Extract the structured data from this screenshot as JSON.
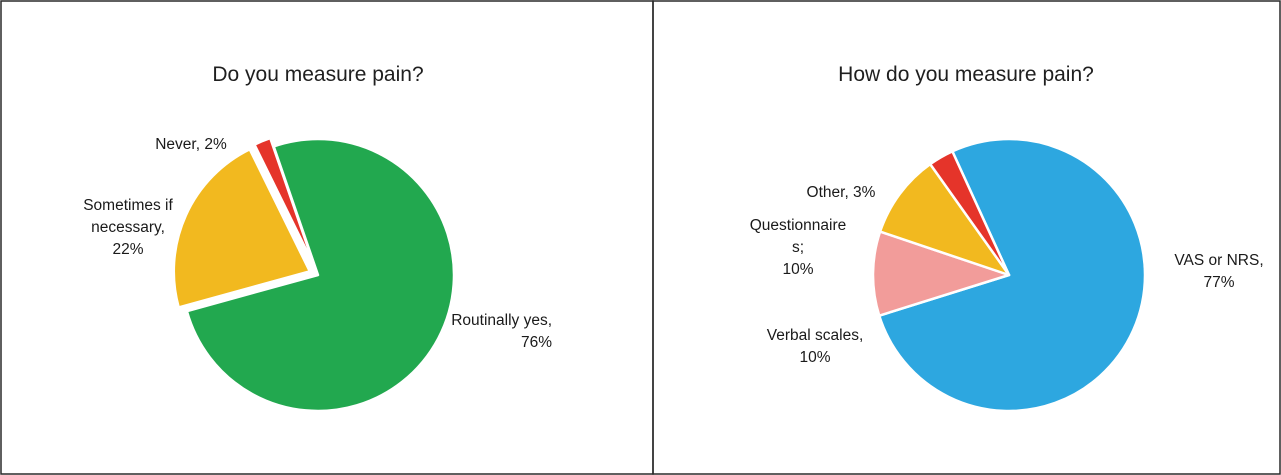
{
  "chart_data": [
    {
      "type": "pie",
      "title": "Do you measure pain?",
      "slices": [
        {
          "name": "Routinally yes",
          "label_lines": [
            "Routinally yes,",
            "76%"
          ],
          "value": 76,
          "color": "#22a84f"
        },
        {
          "name": "Sometimes if necessary",
          "label_lines": [
            "Sometimes if",
            "necessary,",
            "22%"
          ],
          "value": 22,
          "color": "#f2b91f"
        },
        {
          "name": "Never",
          "label_lines": [
            "Never, 2%"
          ],
          "value": 2,
          "color": "#e5342a"
        }
      ]
    },
    {
      "type": "pie",
      "title": "How do you measure pain?",
      "slices": [
        {
          "name": "VAS or NRS",
          "label_lines": [
            "VAS or NRS,",
            "77%"
          ],
          "value": 77,
          "color": "#2da7e0"
        },
        {
          "name": "Verbal scales",
          "label_lines": [
            "Verbal scales,",
            "10%"
          ],
          "value": 10,
          "color": "#f29c9a"
        },
        {
          "name": "Questionnaires",
          "label_lines": [
            "Questionnaire",
            "s;",
            "10%"
          ],
          "value": 10,
          "color": "#f2b91f"
        },
        {
          "name": "Other",
          "label_lines": [
            "Other, 3%"
          ],
          "value": 3,
          "color": "#e5342a"
        }
      ]
    }
  ]
}
